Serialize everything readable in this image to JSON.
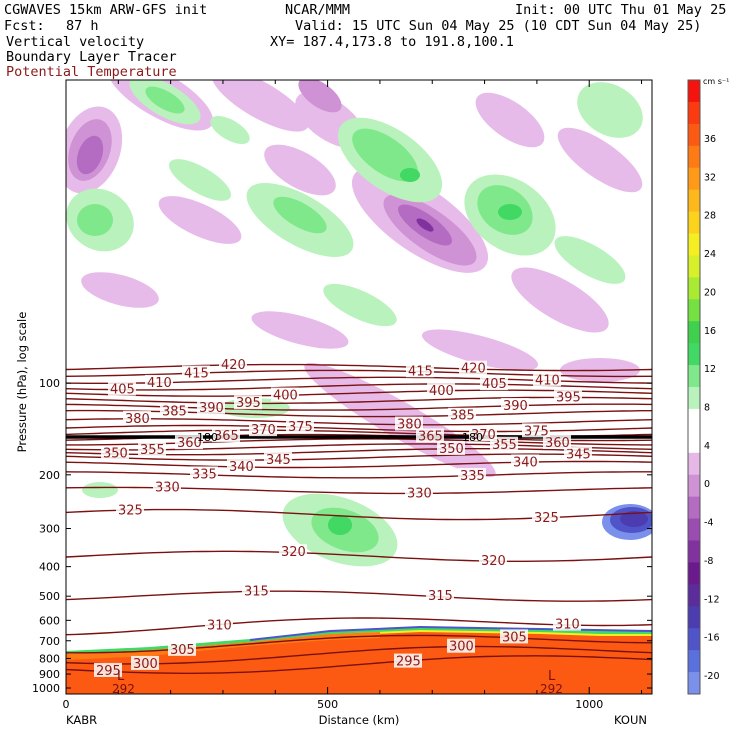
{
  "header": {
    "model": "CGWAVES 15km ARW-GFS init",
    "center": "NCAR/MMM",
    "init": "Init: 00 UTC Thu 01 May 25",
    "fcst_label": "Fcst:",
    "fcst_value": "87 h",
    "valid": "Valid: 15 UTC Sun 04 May 25 (10 CDT Sun 04 May 25)",
    "field1": "Vertical velocity",
    "xy": "XY= 187.4,173.8 to 191.8,100.1",
    "field2": "Boundary Layer Tracer",
    "field3": "Potential Temperature"
  },
  "colors": {
    "theta": "#7a1010",
    "text": "#000000",
    "theta_label": "#8b1a1a"
  },
  "chart_data": {
    "type": "contour cross-section",
    "ylabel": "Pressure (hPa), log scale",
    "xlabel": "Distance (km)",
    "y_log_scale": true,
    "xlim": [
      0,
      1120
    ],
    "ylim": [
      1040,
      10
    ],
    "x_ticks": [
      0,
      500,
      1000
    ],
    "x_tick_labels": [
      "0",
      "500",
      "1000"
    ],
    "y_ticks": [
      1000,
      900,
      800,
      700,
      600,
      500,
      400,
      300,
      200,
      100
    ],
    "y_tick_labels": [
      "1000",
      "900",
      "800",
      "700",
      "600",
      "500",
      "400",
      "300",
      "200",
      "100"
    ],
    "endpoint_left": "KABR",
    "endpoint_right": "KOUN",
    "colorbar": {
      "unit": "cm s⁻¹",
      "labels": [
        "36",
        "32",
        "28",
        "24",
        "20",
        "16",
        "12",
        "8",
        "4",
        "0",
        "-4",
        "-8",
        "-12",
        "-16",
        "-20"
      ],
      "colors": [
        "#f5130e",
        "#fb3a10",
        "#fc5a12",
        "#fd7a14",
        "#fe9a18",
        "#fdb81b",
        "#fcd21d",
        "#f5ee22",
        "#d8f02a",
        "#a8eb32",
        "#74e041",
        "#3fd14d",
        "#41d864",
        "#7ee88a",
        "#b9f2bd",
        "#ffffff",
        "#ffffff",
        "#e6b8e8",
        "#cf92d5",
        "#b46cc2",
        "#9b4cb0",
        "#82329f",
        "#6a1a8c",
        "#5a2d9a",
        "#4b3cb0",
        "#4f55c8",
        "#5a70dd",
        "#7b90ea"
      ]
    },
    "theta_contours": [
      {
        "label": "295",
        "p": 870
      },
      {
        "label": "300",
        "p": 805
      },
      {
        "label": "305",
        "p": 735
      },
      {
        "label": "310",
        "p": 640
      },
      {
        "label": "315",
        "p": 500
      },
      {
        "label": "320",
        "p": 370
      },
      {
        "label": "325",
        "p": 270
      },
      {
        "label": "330",
        "p": 225
      },
      {
        "label": "335",
        "p": 200
      },
      {
        "label": "340",
        "p": 185
      },
      {
        "label": "345",
        "p": 175
      },
      {
        "label": "350",
        "p": 168
      },
      {
        "label": "355",
        "p": 162
      },
      {
        "label": "360",
        "p": 156
      },
      {
        "label": "365",
        "p": 151
      },
      {
        "label": "370",
        "p": 146
      },
      {
        "label": "375",
        "p": 141
      },
      {
        "label": "380",
        "p": 134
      },
      {
        "label": "385",
        "p": 126
      },
      {
        "label": "390",
        "p": 120
      },
      {
        "label": "395",
        "p": 114
      },
      {
        "label": "400",
        "p": 108
      },
      {
        "label": "405",
        "p": 103
      },
      {
        "label": "410",
        "p": 98
      },
      {
        "label": "415",
        "p": 93
      },
      {
        "label": "420",
        "p": 89
      }
    ],
    "tracer_label": "180",
    "low_markers": [
      "L",
      "L"
    ],
    "surface_labels": [
      "292",
      "292"
    ]
  }
}
